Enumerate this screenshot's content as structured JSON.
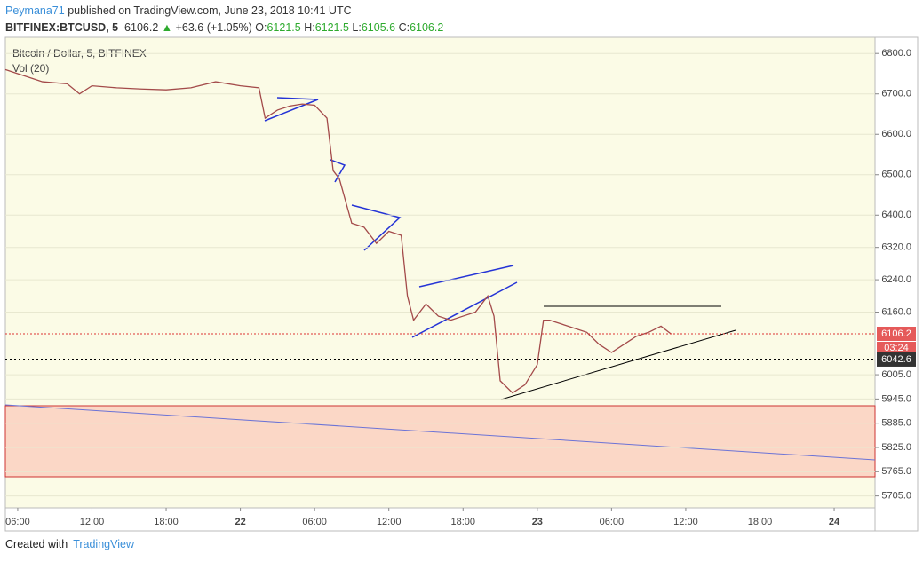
{
  "header": {
    "author": "Peymana71",
    "published": "published on TradingView.com, June 23, 2018 10:41 UTC",
    "symbol": "BITFINEX:BTCUSD, 5",
    "last": "6106.2",
    "change": "+63.6 (+1.05%)",
    "o_label": "O:",
    "o": "6121.5",
    "h_label": "H:",
    "h": "6121.5",
    "l_label": "L:",
    "l": "6105.6",
    "c_label": "C:",
    "c": "6106.2"
  },
  "chart_data": {
    "type": "line",
    "title": "Bitcoin / Dollar, 5, BITFINEX",
    "subtitle": "Vol (20)",
    "x": [
      5,
      6,
      8,
      10,
      11,
      12,
      14,
      16,
      18,
      20,
      22,
      24,
      25.5,
      26,
      27,
      28,
      29,
      30,
      31,
      31.5,
      32,
      33,
      34,
      35,
      36,
      37,
      37.5,
      38,
      39,
      40,
      41,
      42,
      43,
      44,
      44.5,
      45,
      46,
      47,
      48,
      48.5,
      49,
      50,
      51,
      52,
      53,
      54,
      55,
      56,
      57,
      58,
      58.8
    ],
    "series": [
      {
        "name": "BTCUSD",
        "color": "#a34a4a",
        "values": [
          6760,
          6750,
          6730,
          6725,
          6700,
          6720,
          6715,
          6712,
          6710,
          6715,
          6730,
          6720,
          6715,
          6640,
          6660,
          6670,
          6675,
          6672,
          6640,
          6510,
          6490,
          6380,
          6370,
          6330,
          6360,
          6350,
          6200,
          6140,
          6180,
          6150,
          6140,
          6150,
          6160,
          6200,
          6150,
          5990,
          5960,
          5980,
          6030,
          6140,
          6140,
          6130,
          6120,
          6110,
          6080,
          6060,
          6080,
          6100,
          6110,
          6125,
          6106.2
        ]
      }
    ],
    "xlim": [
      5.0,
      75.3
    ],
    "xticks": [
      {
        "value": 6,
        "label": "06:00"
      },
      {
        "value": 12,
        "label": "12:00"
      },
      {
        "value": 18,
        "label": "18:00"
      },
      {
        "value": 24,
        "label": "22"
      },
      {
        "value": 30,
        "label": "06:00"
      },
      {
        "value": 36,
        "label": "12:00"
      },
      {
        "value": 42,
        "label": "18:00"
      },
      {
        "value": 48,
        "label": "23"
      },
      {
        "value": 54,
        "label": "06:00"
      },
      {
        "value": 60,
        "label": "12:00"
      },
      {
        "value": 66,
        "label": "18:00"
      },
      {
        "value": 72,
        "label": "24"
      }
    ],
    "ylim": [
      5680,
      6840
    ],
    "yticks": [
      {
        "value": 6800,
        "label": "6800.0"
      },
      {
        "value": 6700,
        "label": "6700.0"
      },
      {
        "value": 6600,
        "label": "6600.0"
      },
      {
        "value": 6500,
        "label": "6500.0"
      },
      {
        "value": 6400,
        "label": "6400.0"
      },
      {
        "value": 6320,
        "label": "6320.0"
      },
      {
        "value": 6240,
        "label": "6240.0"
      },
      {
        "value": 6160,
        "label": "6160.0"
      },
      {
        "value": 6005,
        "label": "6005.0"
      },
      {
        "value": 5945,
        "label": "5945.0"
      },
      {
        "value": 5885,
        "label": "5885.0"
      },
      {
        "value": 5825,
        "label": "5825.0"
      },
      {
        "value": 5765,
        "label": "5765.0"
      },
      {
        "value": 5705,
        "label": "5705.0"
      }
    ],
    "last_price": 6106.2,
    "countdown": "03:24",
    "level": 6042.6
  },
  "footer": {
    "created": "Created with",
    "brand": "TradingView"
  }
}
